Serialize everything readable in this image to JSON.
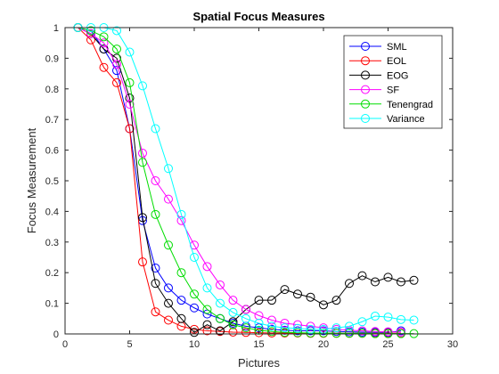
{
  "chart_data": {
    "type": "line",
    "title": "Spatial Focus Measures",
    "xlabel": "Pictures",
    "ylabel": "Focus Measurement",
    "xlim": [
      0,
      30
    ],
    "ylim": [
      0,
      1
    ],
    "xticks": [
      "0",
      "5",
      "10",
      "15",
      "20",
      "25",
      "30"
    ],
    "yticks": [
      "0",
      "0.1",
      "0.2",
      "0.3",
      "0.4",
      "0.5",
      "0.6",
      "0.7",
      "0.8",
      "0.9",
      "1"
    ],
    "grid": false,
    "legend_position": "top-right",
    "marker": "circle",
    "x": [
      1,
      2,
      3,
      4,
      5,
      6,
      7,
      8,
      9,
      10,
      11,
      12,
      13,
      14,
      15,
      16,
      17,
      18,
      19,
      20,
      21,
      22,
      23,
      24,
      25,
      26,
      27
    ],
    "series": [
      {
        "name": "SML",
        "color": "#0000ff",
        "values": [
          1.0,
          0.99,
          0.93,
          0.86,
          0.67,
          0.37,
          0.215,
          0.15,
          0.11,
          0.085,
          0.065,
          0.05,
          0.035,
          0.025,
          0.02,
          0.015,
          0.012,
          0.01,
          0.01,
          0.01,
          0.008,
          0.007,
          0.006,
          0.005,
          0.005,
          0.01,
          null
        ]
      },
      {
        "name": "EOL",
        "color": "#ff0000",
        "values": [
          1.0,
          0.96,
          0.87,
          0.82,
          0.67,
          0.235,
          0.072,
          0.045,
          0.025,
          0.015,
          0.01,
          0.008,
          0.006,
          0.005,
          0.004,
          0.003,
          0.003,
          0.003,
          0.002,
          0.002,
          0.002,
          0.002,
          0.002,
          0.002,
          0.002,
          0.002,
          null
        ]
      },
      {
        "name": "EOG",
        "color": "#000000",
        "values": [
          1.0,
          0.98,
          0.93,
          0.9,
          0.77,
          0.38,
          0.165,
          0.1,
          0.05,
          0.005,
          0.03,
          0.01,
          0.04,
          0.08,
          0.11,
          0.11,
          0.145,
          0.13,
          0.12,
          0.095,
          0.11,
          0.165,
          0.19,
          0.17,
          0.185,
          0.17,
          0.175
        ]
      },
      {
        "name": "SF",
        "color": "#ff00ff",
        "values": [
          1.0,
          0.98,
          0.95,
          0.88,
          0.75,
          0.59,
          0.5,
          0.44,
          0.37,
          0.29,
          0.22,
          0.16,
          0.11,
          0.08,
          0.06,
          0.045,
          0.035,
          0.03,
          0.025,
          0.02,
          0.015,
          0.012,
          0.01,
          0.008,
          0.007,
          0.006,
          null
        ]
      },
      {
        "name": "Tenengrad",
        "color": "#00dd00",
        "values": [
          1.0,
          0.99,
          0.97,
          0.93,
          0.82,
          0.56,
          0.39,
          0.29,
          0.2,
          0.13,
          0.08,
          0.05,
          0.03,
          0.02,
          0.012,
          0.008,
          0.005,
          0.004,
          0.003,
          0.003,
          0.002,
          0.002,
          0.002,
          0.001,
          0.001,
          0.001,
          0.001
        ]
      },
      {
        "name": "Variance",
        "color": "#00ffff",
        "values": [
          1.0,
          1.0,
          1.0,
          0.99,
          0.92,
          0.81,
          0.67,
          0.54,
          0.39,
          0.25,
          0.15,
          0.1,
          0.07,
          0.05,
          0.035,
          0.025,
          0.02,
          0.018,
          0.015,
          0.015,
          0.02,
          0.025,
          0.04,
          0.058,
          0.055,
          0.047,
          0.045
        ]
      }
    ]
  }
}
